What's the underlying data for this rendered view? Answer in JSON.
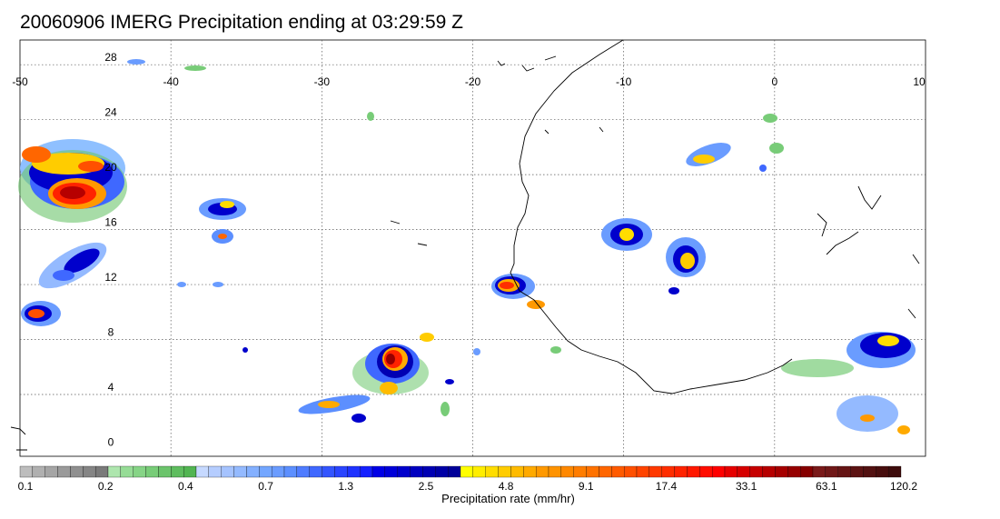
{
  "title": "20060906 IMERG Precipitation ending at 03:29:59 Z",
  "map": {
    "lon_range": [
      -50,
      10
    ],
    "lat_range": [
      -0.5,
      29.8
    ],
    "lon_ticks": [
      "-50",
      "-40",
      "-30",
      "-20",
      "-10",
      "0",
      "10"
    ],
    "lat_ticks": [
      "28",
      "24",
      "20",
      "16",
      "12",
      "8",
      "4",
      "0"
    ]
  },
  "colorbar": {
    "title": "Precipitation rate (mm/hr)",
    "labels": [
      "0.1",
      "0.2",
      "0.4",
      "0.7",
      "1.3",
      "2.5",
      "4.8",
      "9.1",
      "17.4",
      "33.1",
      "63.1",
      "120.2"
    ],
    "colors": [
      "#bdbdbd",
      "#b0b0b0",
      "#a5a5a5",
      "#9a9a9a",
      "#8f8f8f",
      "#858585",
      "#7a7a7a",
      "#aee6ae",
      "#96dc96",
      "#86d486",
      "#78cc78",
      "#6cc46c",
      "#5fbd5f",
      "#52b552",
      "#c6d9ff",
      "#b5cdff",
      "#a5c3ff",
      "#94baff",
      "#84b0ff",
      "#73a6ff",
      "#6a9cff",
      "#5c8fff",
      "#4f7cff",
      "#3f68ff",
      "#3355ff",
      "#2a45ff",
      "#1f33ff",
      "#1420ff",
      "#0000e6",
      "#0000d9",
      "#0000cc",
      "#0000c0",
      "#0000b3",
      "#0000a6",
      "#000099",
      "#ffff00",
      "#ffee00",
      "#ffdd00",
      "#ffcc00",
      "#ffbb00",
      "#ffaa00",
      "#ff9900",
      "#ff9300",
      "#ff8800",
      "#ff7d00",
      "#ff7200",
      "#ff6600",
      "#ff5b00",
      "#ff5000",
      "#ff4400",
      "#ff3900",
      "#ff2e00",
      "#ff2300",
      "#ff1800",
      "#ff0d00",
      "#ff0000",
      "#e60000",
      "#d60000",
      "#c60000",
      "#b60000",
      "#a60000",
      "#960000",
      "#860000",
      "#7a1a1a",
      "#701818",
      "#661515",
      "#5c1313",
      "#521111",
      "#480e0e",
      "#3e0c0c"
    ]
  }
}
